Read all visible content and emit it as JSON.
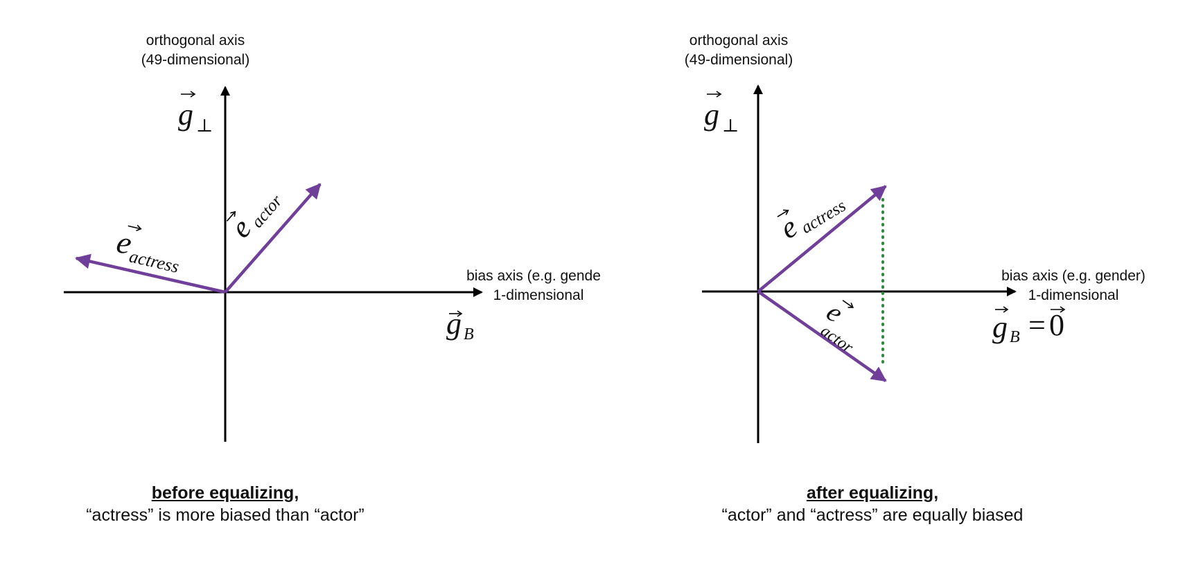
{
  "colors": {
    "vector": "#6f3f99",
    "axis": "#000000",
    "dotted": "#2e8b3e"
  },
  "left": {
    "ortho_line1": "orthogonal axis",
    "ortho_line2": "(49-dimensional)",
    "bias_line1": "bias axis (e.g. gender)",
    "bias_line2": "1-dimensional",
    "g_perp_base": "g",
    "g_perp_sub": "⊥",
    "g_b_base": "g",
    "g_b_sub": "B",
    "vec_actress_base": "e",
    "vec_actress_sub": "actress",
    "vec_actor_base": "e",
    "vec_actor_sub": "actor",
    "caption_title": "before equalizing,",
    "caption_text": "“actress” is more biased than “actor”"
  },
  "right": {
    "ortho_line1": "orthogonal axis",
    "ortho_line2": "(49-dimensional)",
    "bias_line1": "bias axis (e.g. gender)",
    "bias_line2": "1-dimensional",
    "g_perp_base": "g",
    "g_perp_sub": "⊥",
    "g_b_base": "g",
    "g_b_sub": "B",
    "g_b_equals": "=",
    "g_b_zero": "0",
    "vec_actress_base": "e",
    "vec_actress_sub": "actress",
    "vec_actor_base": "e",
    "vec_actor_sub": "actor",
    "caption_title": "after equalizing,",
    "caption_text": "“actor” and “actress” are equally biased"
  }
}
